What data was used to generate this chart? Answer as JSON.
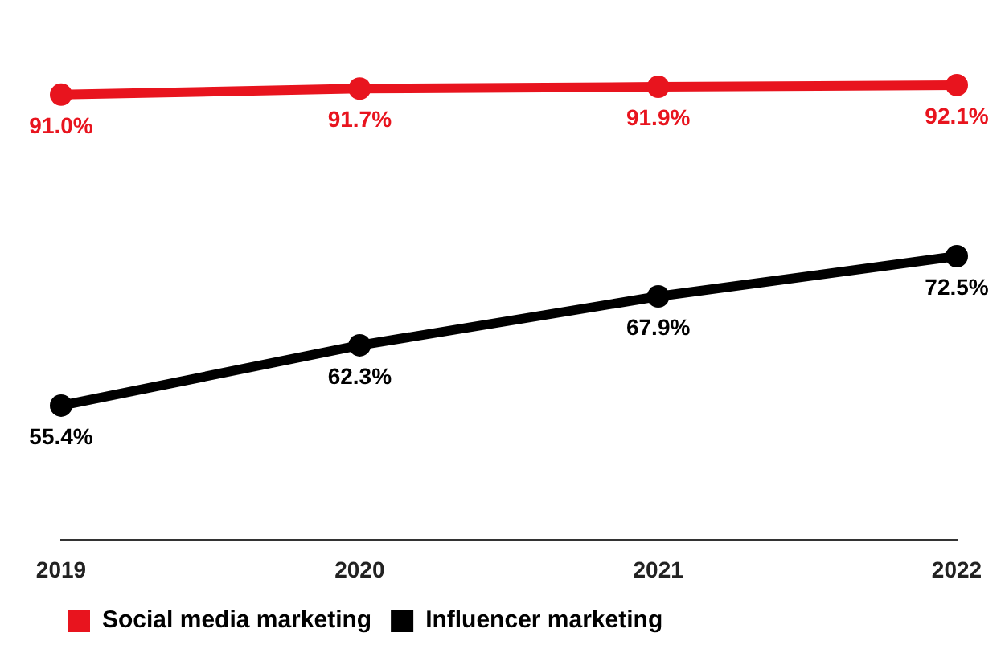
{
  "chart_data": {
    "type": "line",
    "categories": [
      "2019",
      "2020",
      "2021",
      "2022"
    ],
    "series": [
      {
        "name": "Social media marketing",
        "color": "#e8141e",
        "values": [
          91.0,
          91.7,
          91.9,
          92.1
        ],
        "value_labels": [
          "91.0%",
          "91.7%",
          "91.9%",
          "92.1%"
        ]
      },
      {
        "name": "Influencer marketing",
        "color": "#000000",
        "values": [
          55.4,
          62.3,
          67.9,
          72.5
        ],
        "value_labels": [
          "55.4%",
          "62.3%",
          "67.9%",
          "72.5%"
        ]
      }
    ],
    "tick_labels": "x",
    "grid": false,
    "legend": "bottom left",
    "marker": "circle",
    "line_style": "solid"
  }
}
